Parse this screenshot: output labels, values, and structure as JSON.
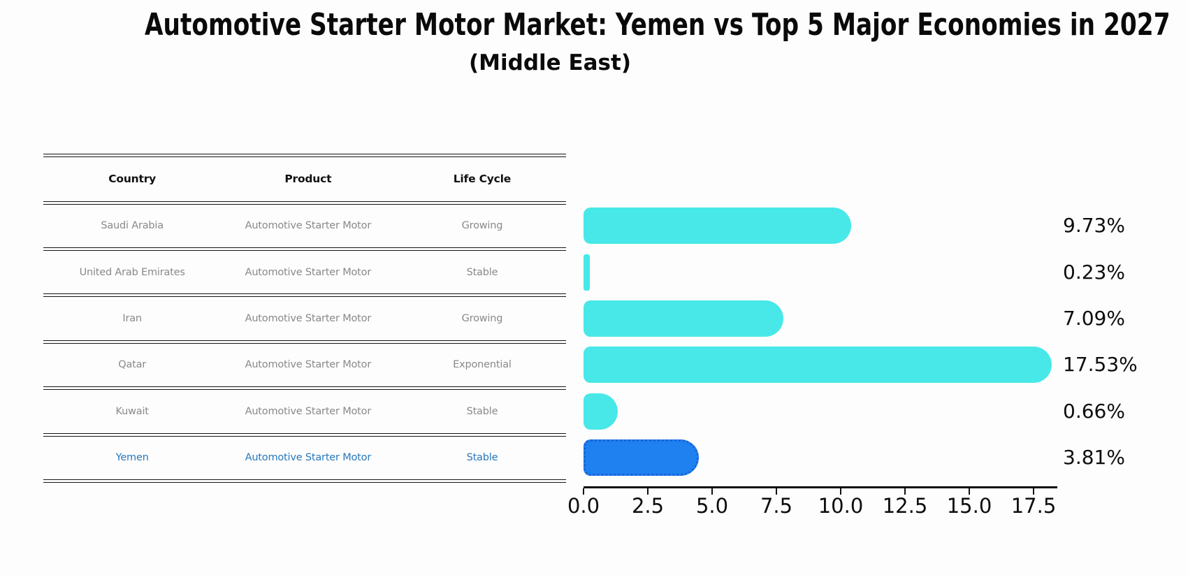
{
  "title": "Automotive Starter Motor Market: Yemen vs Top 5 Major Economies in 2027",
  "subtitle": "(Middle East)",
  "table": {
    "headers": [
      "Country",
      "Product",
      "Life Cycle"
    ],
    "rows": [
      {
        "country": "Saudi Arabia",
        "product": "Automotive Starter Motor",
        "life_cycle": "Growing",
        "highlight": false
      },
      {
        "country": "United Arab Emirates",
        "product": "Automotive Starter Motor",
        "life_cycle": "Stable",
        "highlight": false
      },
      {
        "country": "Iran",
        "product": "Automotive Starter Motor",
        "life_cycle": "Growing",
        "highlight": false
      },
      {
        "country": "Qatar",
        "product": "Automotive Starter Motor",
        "life_cycle": "Exponential",
        "highlight": false
      },
      {
        "country": "Kuwait",
        "product": "Automotive Starter Motor",
        "life_cycle": "Stable",
        "highlight": false
      },
      {
        "country": "Yemen",
        "product": "Automotive Starter Motor",
        "life_cycle": "Stable",
        "highlight": true
      }
    ]
  },
  "chart_data": {
    "type": "bar",
    "orientation": "horizontal",
    "title": "Automotive Starter Motor Market: Yemen vs Top 5 Major Economies in 2027",
    "subtitle": "(Middle East)",
    "categories": [
      "Saudi Arabia",
      "United Arab Emirates",
      "Iran",
      "Qatar",
      "Kuwait",
      "Yemen"
    ],
    "values": [
      9.73,
      0.23,
      7.09,
      17.53,
      0.66,
      3.81
    ],
    "value_labels": [
      "9.73%",
      "0.23%",
      "7.09%",
      "17.53%",
      "0.66%",
      "3.81%"
    ],
    "x_tick_labels": [
      "0.0",
      "2.5",
      "5.0",
      "7.5",
      "10.0",
      "12.5",
      "15.0",
      "17.5"
    ],
    "x_tick_values": [
      0,
      2.5,
      5,
      7.5,
      10,
      12.5,
      15,
      17.5
    ],
    "xlim": [
      0,
      18.4
    ],
    "grid": false,
    "legend": "none",
    "highlight_index": 5,
    "bar_color": "#48E8E8",
    "highlight_bar_color": "#1F80EF",
    "highlight_border_color": "#1565D8",
    "highlight_text_color": "#2878bd",
    "row_text_color": "#898989",
    "header_text_color": "#111111",
    "background_color": "#fdfdfd"
  }
}
